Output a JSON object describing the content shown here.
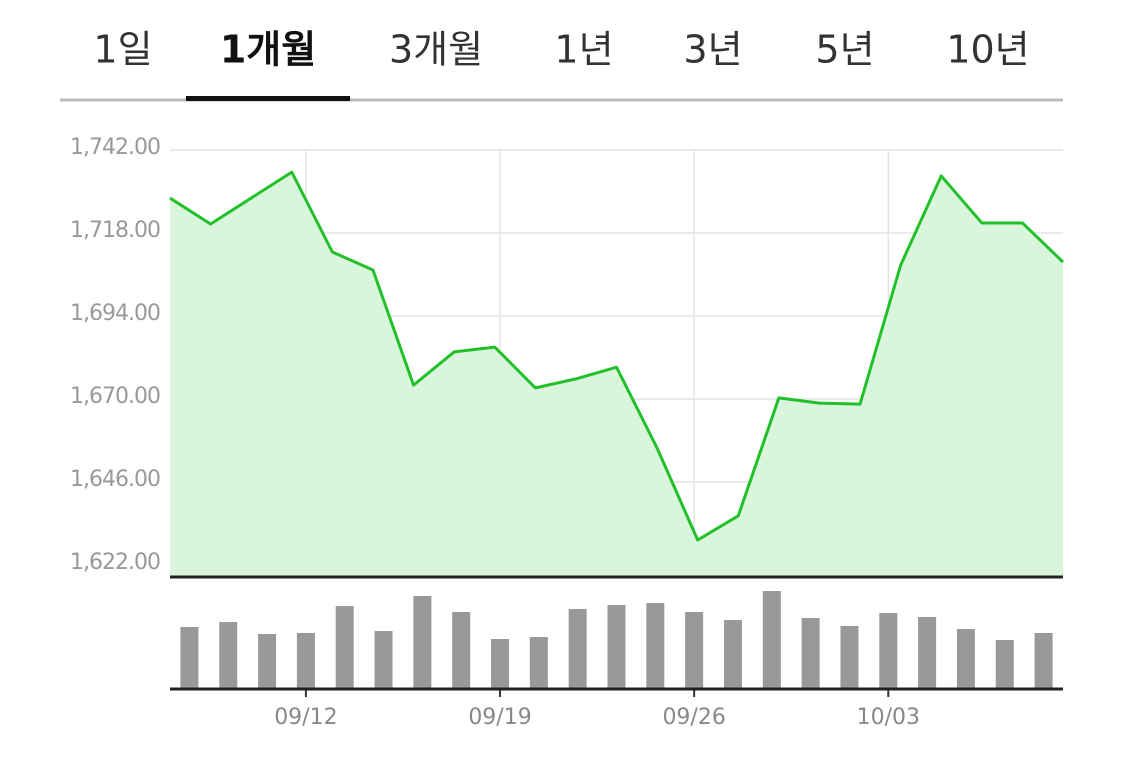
{
  "tabs": [
    "1일",
    "1개월",
    "3개월",
    "1년",
    "3년",
    "5년",
    "10년"
  ],
  "selected_tab": 1,
  "chart_data": {
    "type": "line",
    "categories": [
      null,
      null,
      null,
      "09/12",
      null,
      null,
      null,
      null,
      "09/19",
      null,
      null,
      null,
      null,
      "09/26",
      null,
      null,
      null,
      null,
      "10/03",
      null,
      null,
      null,
      null
    ],
    "values": [
      1728.1,
      1720.6,
      1728.1,
      1735.6,
      1712.5,
      1707.3,
      1674.0,
      1683.6,
      1685.0,
      1673.2,
      1675.8,
      1679.2,
      1655.8,
      1629.2,
      1636.2,
      1670.3,
      1668.8,
      1668.5,
      1708.7,
      1734.5,
      1720.9,
      1720.9,
      1709.6
    ],
    "color": "#22c02a",
    "fill_color": "#d9f5dc",
    "ylim": [
      1618.5,
      1742
    ],
    "yticks": [
      {
        "value": 1622,
        "label": "1,622.00"
      },
      {
        "value": 1646,
        "label": "1,646.00"
      },
      {
        "value": 1670,
        "label": "1,670.00"
      },
      {
        "value": 1694,
        "label": "1,694.00"
      },
      {
        "value": 1718,
        "label": "1,718.00"
      },
      {
        "value": 1742,
        "label": "1,742.00"
      }
    ],
    "grid": true,
    "volume": {
      "values": [
        62,
        67,
        55,
        56,
        83,
        58,
        93,
        77,
        50,
        52,
        80,
        84,
        86,
        77,
        69,
        98,
        71,
        63,
        76,
        72,
        60,
        49,
        56
      ],
      "ylim": [
        0,
        112
      ],
      "color": "#999999"
    }
  }
}
